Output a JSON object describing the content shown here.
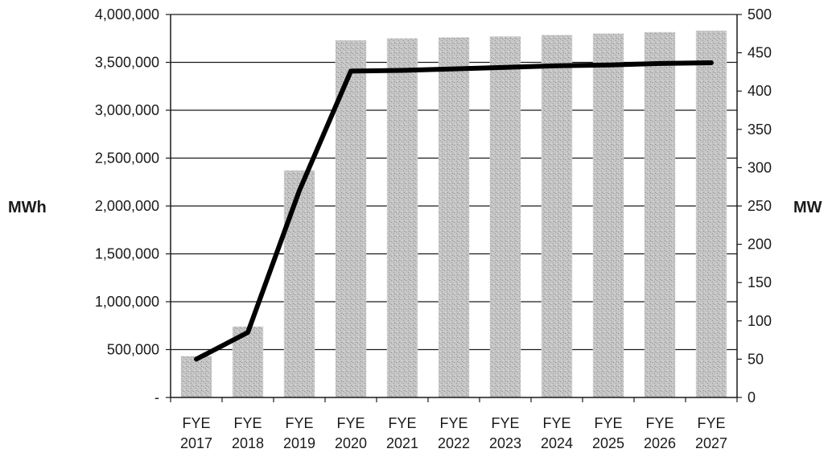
{
  "chart_data": {
    "type": "bar",
    "categories": [
      [
        "FYE",
        "2017"
      ],
      [
        "FYE",
        "2018"
      ],
      [
        "FYE",
        "2019"
      ],
      [
        "FYE",
        "2020"
      ],
      [
        "FYE",
        "2021"
      ],
      [
        "FYE",
        "2022"
      ],
      [
        "FYE",
        "2023"
      ],
      [
        "FYE",
        "2024"
      ],
      [
        "FYE",
        "2025"
      ],
      [
        "FYE",
        "2026"
      ],
      [
        "FYE",
        "2027"
      ]
    ],
    "series": [
      {
        "kind": "bar",
        "axis": "left",
        "color": "#bdbdbd",
        "values": [
          430000,
          740000,
          2370000,
          3730000,
          3750000,
          3760000,
          3770000,
          3785000,
          3800000,
          3815000,
          3830000
        ]
      },
      {
        "kind": "line",
        "axis": "right",
        "color": "#000000",
        "values": [
          50,
          85,
          270,
          426,
          427,
          429,
          431,
          433,
          434,
          436,
          437
        ]
      }
    ],
    "ylabel": "MWh",
    "y2label": "MW",
    "ylim": [
      0,
      4000000
    ],
    "y2lim": [
      0,
      500
    ],
    "yticks": [
      {
        "value": 0,
        "label": "-"
      },
      {
        "value": 500000,
        "label": "500,000"
      },
      {
        "value": 1000000,
        "label": "1,000,000"
      },
      {
        "value": 1500000,
        "label": "1,500,000"
      },
      {
        "value": 2000000,
        "label": "2,000,000"
      },
      {
        "value": 2500000,
        "label": "2,500,000"
      },
      {
        "value": 3000000,
        "label": "3,000,000"
      },
      {
        "value": 3500000,
        "label": "3,500,000"
      },
      {
        "value": 4000000,
        "label": "4,000,000"
      }
    ],
    "y2ticks": [
      {
        "value": 0,
        "label": "0"
      },
      {
        "value": 50,
        "label": "50"
      },
      {
        "value": 100,
        "label": "100"
      },
      {
        "value": 150,
        "label": "150"
      },
      {
        "value": 200,
        "label": "200"
      },
      {
        "value": 250,
        "label": "250"
      },
      {
        "value": 300,
        "label": "300"
      },
      {
        "value": 350,
        "label": "350"
      },
      {
        "value": 400,
        "label": "400"
      },
      {
        "value": 450,
        "label": "450"
      },
      {
        "value": 500,
        "label": "500"
      }
    ],
    "grid": true,
    "legend": "none"
  }
}
